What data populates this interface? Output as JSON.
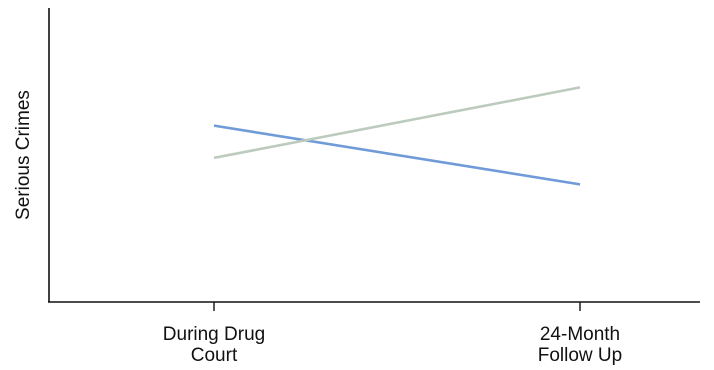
{
  "chart_data": {
    "type": "line",
    "title": "",
    "xlabel": "",
    "ylabel": "Serious Crimes",
    "categories": [
      [
        "During Drug",
        "Court"
      ],
      [
        "24-Month",
        "Follow Up"
      ]
    ],
    "series": [
      {
        "values": [
          0.6,
          0.4
        ],
        "color": "#6f9bd8"
      },
      {
        "values": [
          0.49,
          0.73
        ],
        "color": "#bccbbd"
      }
    ],
    "ylim": [
      0,
      1
    ],
    "grid": false,
    "y_ticks_shown": false
  }
}
